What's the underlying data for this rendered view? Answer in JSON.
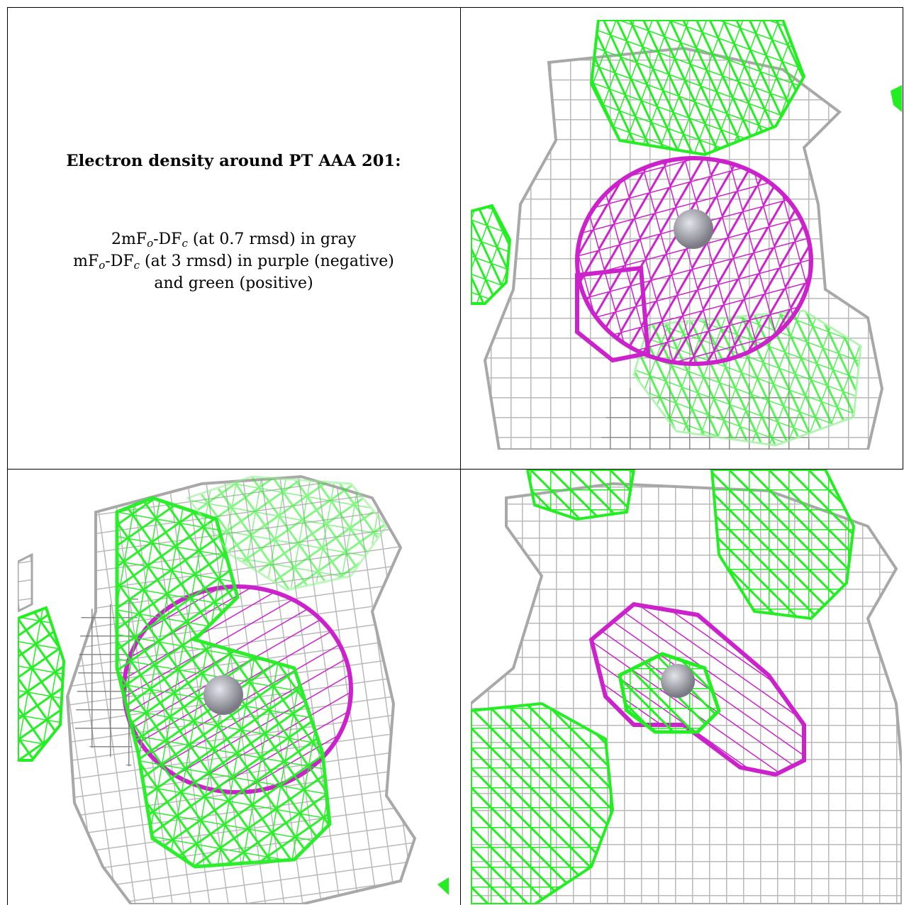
{
  "caption": {
    "title": "Electron density around PT AAA 201:",
    "line1_main": "2mF",
    "line1_sub_o": "o",
    "line1_mid": "-DF",
    "line1_sub_c": "c",
    "line1_rest": " (at 0.7 rmsd) in gray",
    "line2_main": "mF",
    "line2_sub_o": "o",
    "line2_mid": "-DF",
    "line2_sub_c": "c",
    "line2_rest": " (at 3 rmsd) in purple (negative)",
    "line3": "and green (positive)"
  },
  "map_colors": {
    "gray_mesh": "#b8b8b8",
    "dark_mesh": "#6e6e6e",
    "green_mesh": "#22ee22",
    "purple_mesh": "#cc22cc",
    "atom": "#9a9aa2"
  },
  "panels": [
    {
      "name": "view-top-right"
    },
    {
      "name": "view-bottom-left"
    },
    {
      "name": "view-bottom-right"
    }
  ]
}
